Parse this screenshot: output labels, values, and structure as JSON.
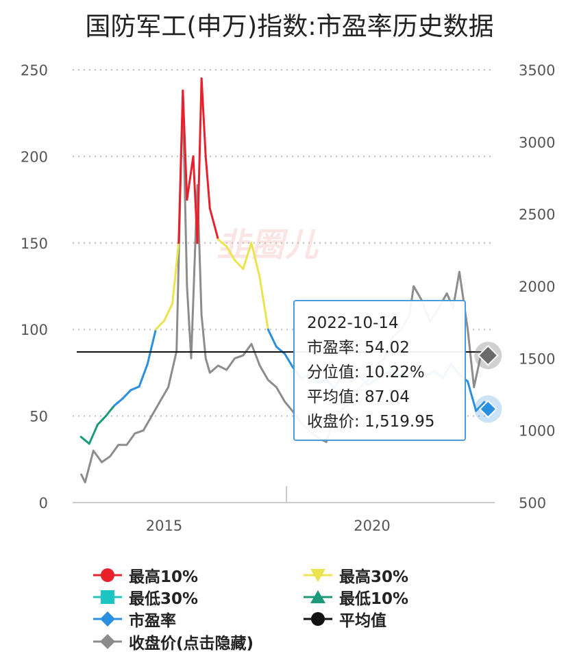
{
  "title": "国防军工(申万)指数:市盈率历史数据",
  "watermark": "韭圈儿",
  "colors": {
    "high10": "#e8202c",
    "high30": "#ece44e",
    "low30": "#1cc4c4",
    "low10": "#1a9a7a",
    "pe": "#2b8fe0",
    "avg": "#111111",
    "close": "#8c8c8c",
    "grid": "#bbbbbb"
  },
  "tooltip": {
    "date": "2022-10-14",
    "pe_label": "市盈率:",
    "pe_value": "54.02",
    "pct_label": "分位值:",
    "pct_value": "10.22%",
    "avg_label": "平均值:",
    "avg_value": "87.04",
    "close_label": "收盘价:",
    "close_value": "1,519.95"
  },
  "legend": [
    {
      "label": "最高10%",
      "color": "#e8202c",
      "shape": "circle-line"
    },
    {
      "label": "最高30%",
      "color": "#ece44e",
      "shape": "triangle-down"
    },
    {
      "label": "最低30%",
      "color": "#1cc4c4",
      "shape": "square"
    },
    {
      "label": "最低10%",
      "color": "#1a9a7a",
      "shape": "triangle-up"
    },
    {
      "label": "市盈率",
      "color": "#2b8fe0",
      "shape": "diamond"
    },
    {
      "label": "平均值",
      "color": "#111111",
      "shape": "circle-line"
    },
    {
      "label": "收盘价(点击隐藏)",
      "color": "#8c8c8c",
      "shape": "diamond"
    }
  ],
  "chart_data": {
    "type": "line",
    "title": "国防军工(申万)指数:市盈率历史数据",
    "x_ticks": [
      "2015",
      "2020"
    ],
    "y_left": {
      "ticks": [
        0,
        50,
        100,
        150,
        200,
        250
      ],
      "range": [
        0,
        250
      ]
    },
    "y_right": {
      "ticks": [
        500,
        1000,
        1500,
        2000,
        2500,
        3000,
        3500
      ],
      "range": [
        500,
        3500
      ]
    },
    "grid": true,
    "average": 87.04,
    "series": [
      {
        "name": "市盈率",
        "axis": "left",
        "x": [
          2013.0,
          2013.2,
          2013.4,
          2013.6,
          2013.8,
          2014.0,
          2014.2,
          2014.4,
          2014.6,
          2014.8,
          2015.0,
          2015.2,
          2015.35,
          2015.45,
          2015.55,
          2015.7,
          2015.8,
          2015.9,
          2016.0,
          2016.1,
          2016.3,
          2016.5,
          2016.7,
          2016.9,
          2017.1,
          2017.3,
          2017.5,
          2017.7,
          2017.9,
          2018.1,
          2018.3,
          2018.5,
          2018.7,
          2018.9,
          2019.1,
          2019.3,
          2019.5,
          2019.7,
          2019.9,
          2020.1,
          2020.3,
          2020.5,
          2020.7,
          2020.9,
          2021.1,
          2021.3,
          2021.5,
          2021.7,
          2021.9,
          2022.1,
          2022.3,
          2022.5,
          2022.7,
          2022.79
        ],
        "y": [
          38,
          34,
          45,
          50,
          56,
          60,
          65,
          67,
          80,
          100,
          105,
          115,
          150,
          238,
          175,
          200,
          150,
          245,
          200,
          170,
          152,
          148,
          140,
          135,
          150,
          130,
          100,
          90,
          86,
          78,
          72,
          74,
          69,
          71,
          66,
          75,
          70,
          73,
          68,
          71,
          74,
          77,
          72,
          75,
          78,
          73,
          76,
          72,
          80,
          74,
          70,
          53,
          58,
          54.02
        ]
      },
      {
        "name": "收盘价(点击隐藏)",
        "axis": "right",
        "x": [
          2013.0,
          2013.1,
          2013.3,
          2013.5,
          2013.7,
          2013.9,
          2014.1,
          2014.3,
          2014.5,
          2014.7,
          2014.9,
          2015.1,
          2015.3,
          2015.4,
          2015.45,
          2015.55,
          2015.65,
          2015.8,
          2015.9,
          2016.0,
          2016.1,
          2016.3,
          2016.5,
          2016.7,
          2016.9,
          2017.1,
          2017.3,
          2017.5,
          2017.7,
          2017.9,
          2018.1,
          2018.3,
          2018.5,
          2018.7,
          2018.9,
          2019.1,
          2019.3,
          2019.5,
          2019.7,
          2019.9,
          2020.1,
          2020.3,
          2020.5,
          2020.7,
          2020.9,
          2021.0,
          2021.2,
          2021.4,
          2021.6,
          2021.8,
          2021.95,
          2022.1,
          2022.3,
          2022.45,
          2022.6,
          2022.79
        ],
        "y": [
          700,
          640,
          860,
          780,
          820,
          900,
          900,
          980,
          1000,
          1100,
          1200,
          1300,
          1550,
          2800,
          3300,
          2000,
          1500,
          2700,
          1800,
          1500,
          1400,
          1450,
          1420,
          1500,
          1520,
          1600,
          1450,
          1350,
          1300,
          1200,
          1130,
          1050,
          1000,
          950,
          920,
          1100,
          1150,
          1200,
          1300,
          1350,
          1450,
          1500,
          1650,
          1700,
          1800,
          2000,
          1900,
          1750,
          1850,
          1950,
          1850,
          2100,
          1700,
          1300,
          1500,
          1519.95
        ]
      }
    ]
  }
}
